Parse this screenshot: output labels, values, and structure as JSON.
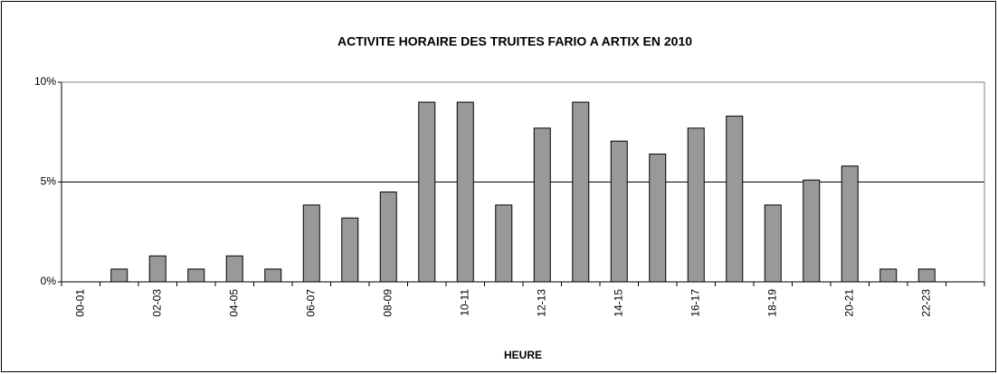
{
  "chart_data": {
    "type": "bar",
    "title": "ACTIVITE HORAIRE DES TRUITES FARIO A ARTIX EN 2010",
    "x_label": "HEURE",
    "categories": [
      "00-01",
      null,
      "02-03",
      null,
      "04-05",
      null,
      "06-07",
      null,
      "08-09",
      null,
      "10-11",
      null,
      "12-13",
      null,
      "14-15",
      null,
      "16-17",
      null,
      "18-19",
      null,
      "20-21",
      null,
      "22-23",
      null
    ],
    "values": [
      0,
      0.64,
      1.3,
      0.64,
      1.3,
      0.64,
      3.85,
      3.2,
      4.5,
      9.0,
      9.0,
      3.85,
      7.7,
      9.0,
      7.05,
      6.4,
      7.7,
      8.3,
      3.85,
      5.1,
      5.8,
      0.64,
      0.64,
      0
    ],
    "color": "#999999",
    "ylim": [
      0,
      10
    ],
    "yticks": [
      {
        "value": 0,
        "label": "0%"
      },
      {
        "value": 5,
        "label": "5%"
      },
      {
        "value": 10,
        "label": "10%"
      }
    ],
    "grid": true
  }
}
